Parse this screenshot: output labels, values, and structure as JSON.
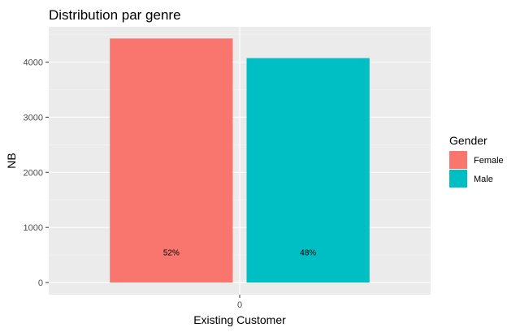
{
  "chart_data": {
    "type": "bar",
    "title": "Distribution par genre",
    "xlabel": "Existing Customer",
    "ylabel": "NB",
    "x_ticks": [
      "0"
    ],
    "y_ticks": [
      0,
      1000,
      2000,
      3000,
      4000
    ],
    "ylim": [
      -220,
      4640
    ],
    "grid": true,
    "legend": {
      "title": "Gender",
      "placement": "right"
    },
    "series": [
      {
        "name": "Female",
        "value": 4428,
        "label": "52%",
        "color": "#F8766D"
      },
      {
        "name": "Male",
        "value": 4072,
        "label": "48%",
        "color": "#00BFC4"
      }
    ],
    "colors": {
      "panel_bg": "#EBEBEB",
      "grid_major": "#FFFFFF",
      "grid_minor": "#F5F5F5"
    }
  }
}
